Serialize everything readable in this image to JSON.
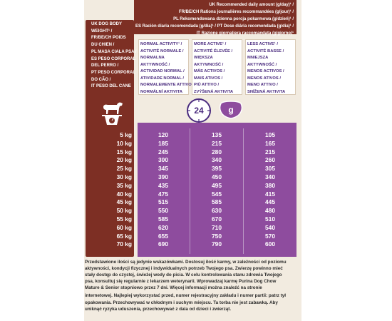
{
  "header": {
    "lines": [
      "UK Recommended daily amount (g/day)¹ /",
      "FR/BE/CH Rations journalières recommandées (g/jour)¹ /",
      "PL Rekomendowana dzienna porcja pokarmowa (g/dzień)¹ /",
      "ES Ración diaria recomendada (g/día)¹ / PT Dose diária recomendada (g/dia)¹ /",
      "IT Razione giornaliera raccomandata (g/giorno)¹"
    ]
  },
  "weight_column": {
    "lines": [
      "UK DOG BODY",
      "WEIGHT¹ /",
      "FR/BE/CH POIDS",
      "DU CHIEN /",
      "PL MASA CIAŁA PSA /",
      "ES PESO CORPORAL",
      "DEL PERRO /",
      "PT PESO CORPORAL",
      "DO CÃO /",
      "IT PESO DEL CANE"
    ]
  },
  "activity_columns": [
    {
      "lines": [
        "NORMAL ACTIVITY¹ /",
        "ACTIVITÉ NORMALE /",
        "NORMALNA",
        "AKTYWNOŚĆ /",
        "ACTIVIDAD NORMAL /",
        "ATIVIDADE NORMAL /",
        "NORMALEMENTE ATTIVO /",
        "NORMÁLNÍ AKTIVITA"
      ]
    },
    {
      "lines": [
        "MORE ACTIVE¹ /",
        "ACTIVITÉ ÉLEVÉE /",
        "WIĘKSZA",
        "AKTYWNOŚĆ /",
        "MÁS ACTIVOS /",
        "MAIS ATIVOS /",
        "PIÙ ATTIVO /",
        "ZVÝŠENÁ AKTIVITA"
      ]
    },
    {
      "lines": [
        "LESS ACTIVE¹ /",
        "ACTIVITÉ BASSE /",
        "MNIEJSZA",
        "AKTYWNOŚĆ /",
        "MENOS ACTIVOS /",
        "MENOS ATIVOS /",
        "MENO ATTIVO /",
        "SNÍŽENÁ AKTIVITA"
      ]
    }
  ],
  "clock": {
    "label": "24"
  },
  "bowl": {
    "label": "g"
  },
  "table": {
    "rows": [
      {
        "weight": "5 kg",
        "normal": "120",
        "more": "135",
        "less": "105"
      },
      {
        "weight": "10 kg",
        "normal": "185",
        "more": "215",
        "less": "165"
      },
      {
        "weight": "15 kg",
        "normal": "245",
        "more": "280",
        "less": "215"
      },
      {
        "weight": "20 kg",
        "normal": "300",
        "more": "340",
        "less": "260"
      },
      {
        "weight": "25 kg",
        "normal": "345",
        "more": "395",
        "less": "305"
      },
      {
        "weight": "30 kg",
        "normal": "390",
        "more": "450",
        "less": "340"
      },
      {
        "weight": "35 kg",
        "normal": "435",
        "more": "495",
        "less": "380"
      },
      {
        "weight": "40 kg",
        "normal": "475",
        "more": "545",
        "less": "415"
      },
      {
        "weight": "45 kg",
        "normal": "515",
        "more": "585",
        "less": "445"
      },
      {
        "weight": "50 kg",
        "normal": "550",
        "more": "630",
        "less": "480"
      },
      {
        "weight": "55 kg",
        "normal": "585",
        "more": "670",
        "less": "510"
      },
      {
        "weight": "60 kg",
        "normal": "620",
        "more": "710",
        "less": "540"
      },
      {
        "weight": "65 kg",
        "normal": "655",
        "more": "750",
        "less": "570"
      },
      {
        "weight": "70 kg",
        "normal": "690",
        "more": "790",
        "less": "600"
      }
    ]
  },
  "footer": {
    "lines": [
      "Przedstawione ilości są jedynie wskazówkami. Dostosuj ilość karmy, w zależności od poziomu",
      "aktywności, kondycji fizycznej i indywidualnych potrzeb Twojego psa. Zwierzę powinno mieć",
      "stały dostęp do czystej, świeżej wody do picia. W celu kontrolowania stanu zdrowia Twojego",
      "psa, konsultuj się regularnie z lekarzem weterynarii. Wprowadzaj karmę Purina Dog Chow",
      "Mature & Senior stopniowo przez 7 dni. Więcej informacji można znaleźć na stronie",
      "internetowej. Najlepiej wykorzystać przed, numer rejestracyjny zakładu i numer partii: patrz tył",
      "opakowania. Przechowywać w chłodnym i suchym miejscu. Ta torba nie jest zabawką. Aby",
      "uniknąć ryzyka uduszenia, przechowywać z dala od dzieci i zwierząt."
    ]
  },
  "colors": {
    "brown": "#7d2f24",
    "purple": "#8e4c9e",
    "activity_text": "#4b2c7f",
    "background": "#f2ebe0"
  }
}
